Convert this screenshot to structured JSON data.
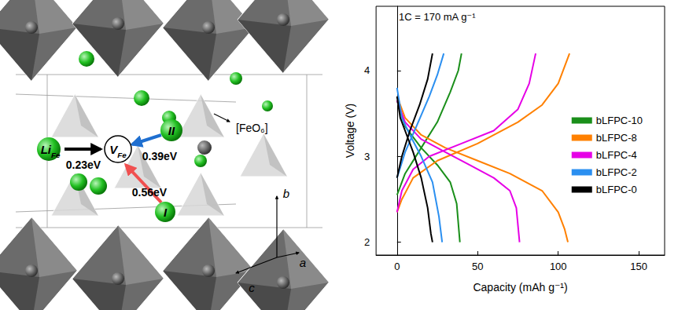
{
  "chart_data": {
    "type": "line",
    "annotation": "1C = 170 mA g⁻¹",
    "x_label": "Capacity (mAh g⁻¹)",
    "y_label": "Voltage (V)",
    "xlim": [
      -13,
      166
    ],
    "xticks": [
      0,
      50,
      100,
      150
    ],
    "ylim": [
      1.85,
      4.75
    ],
    "yticks": [
      2,
      3,
      4
    ],
    "grid": false,
    "legend": "right",
    "series": [
      {
        "name": "bLFPC-10",
        "color": "#1a8f1a",
        "x": [
          0,
          5,
          15,
          25,
          33,
          38,
          40,
          0,
          0,
          5,
          15,
          25,
          33,
          37,
          39
        ],
        "values": [
          2.55,
          2.8,
          3.1,
          3.4,
          3.75,
          4.0,
          4.2,
          null,
          3.65,
          3.35,
          3.1,
          2.9,
          2.7,
          2.45,
          2.0
        ]
      },
      {
        "name": "bLFPC-8",
        "color": "#ff8000",
        "x": [
          0,
          3,
          10,
          25,
          50,
          75,
          90,
          100,
          107,
          0,
          0,
          5,
          15,
          30,
          50,
          70,
          90,
          100,
          104,
          106
        ],
        "values": [
          2.35,
          2.5,
          2.75,
          2.95,
          3.15,
          3.4,
          3.6,
          3.85,
          4.2,
          null,
          3.7,
          3.45,
          3.25,
          3.1,
          2.95,
          2.8,
          2.6,
          2.35,
          2.15,
          2.0
        ]
      },
      {
        "name": "bLFPC-4",
        "color": "#e600e6",
        "x": [
          0,
          3,
          10,
          20,
          40,
          60,
          75,
          82,
          86,
          0,
          0,
          5,
          15,
          30,
          45,
          60,
          70,
          74,
          76
        ],
        "values": [
          2.35,
          2.6,
          2.85,
          3.0,
          3.15,
          3.3,
          3.55,
          3.85,
          4.2,
          null,
          3.65,
          3.4,
          3.2,
          3.05,
          2.9,
          2.75,
          2.6,
          2.4,
          2.0
        ]
      },
      {
        "name": "bLFPC-2",
        "color": "#2b8ff0",
        "x": [
          0,
          5,
          12,
          20,
          25,
          29,
          0,
          0,
          3,
          8,
          15,
          22,
          26,
          28
        ],
        "values": [
          2.75,
          3.05,
          3.35,
          3.7,
          3.95,
          4.2,
          null,
          3.8,
          3.45,
          3.25,
          3.0,
          2.7,
          2.3,
          2.0
        ]
      },
      {
        "name": "bLFPC-0",
        "color": "#000000",
        "x": [
          0,
          3,
          8,
          14,
          19,
          22,
          0,
          0,
          2,
          5,
          10,
          15,
          19,
          21,
          22
        ],
        "values": [
          2.75,
          3.0,
          3.3,
          3.6,
          3.9,
          4.2,
          null,
          3.7,
          3.45,
          3.3,
          3.05,
          2.75,
          2.4,
          2.1,
          2.0
        ]
      }
    ]
  },
  "diagram": {
    "polyhedron_label": "[FeO₆]",
    "li_site": {
      "text": "Li",
      "sub": "Fe"
    },
    "vacancy": {
      "text": "V",
      "sub": "Fe"
    },
    "site_2": "II",
    "site_1": "I",
    "barrier_li": "0.23eV",
    "barrier_2": "0.39eV",
    "barrier_1": "0.56eV",
    "axes": [
      "b",
      "c",
      "a"
    ]
  }
}
